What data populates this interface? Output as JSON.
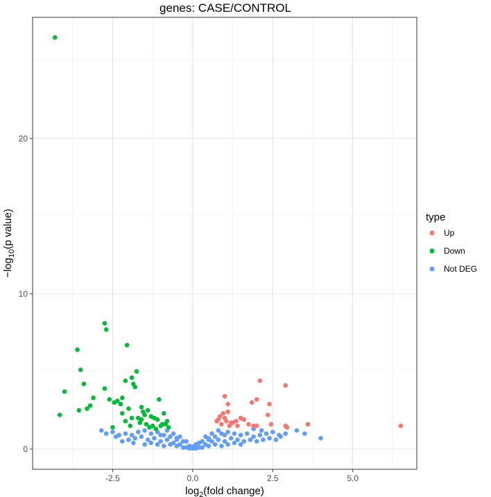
{
  "chart_data": {
    "type": "scatter",
    "title": "genes: CASE/CONTROL",
    "xlabel_main": "log",
    "xlabel_sub": "2",
    "xlabel_rest": "(fold change)",
    "ylabel_main": "−log",
    "ylabel_sub": "10",
    "ylabel_rest": "(p value)",
    "xlim": [
      -5.0,
      7.0
    ],
    "ylim": [
      -1.3,
      27.8
    ],
    "x_ticks": [
      -2.5,
      0.0,
      2.5,
      5.0
    ],
    "x_tick_labels": [
      "-2.5",
      "0.0",
      "2.5",
      "5.0"
    ],
    "y_ticks": [
      0,
      10,
      20
    ],
    "y_tick_labels": [
      "0",
      "10",
      "20"
    ],
    "grid": true,
    "legend": {
      "title": "type",
      "position": "right",
      "entries": [
        {
          "label": "Up",
          "color": "#F8766D"
        },
        {
          "label": "Down",
          "color": "#00BA38"
        },
        {
          "label": "Not DEG",
          "color": "#619CFF"
        }
      ]
    },
    "series": [
      {
        "name": "Up",
        "color": "#F8766D",
        "x": [
          2.1,
          2.9,
          2.0,
          1.0,
          1.1,
          1.85,
          2.4,
          2.35,
          1.1,
          0.95,
          1.5,
          1.35,
          0.85,
          1.6,
          1.75,
          1.9,
          2.45,
          2.0,
          1.25,
          2.95,
          3.6,
          6.5,
          2.9,
          0.8,
          1.05,
          1.2,
          0.9,
          1.4,
          1.15,
          0.75,
          1.0
        ],
        "y": [
          4.4,
          4.1,
          3.2,
          3.4,
          2.9,
          3.0,
          2.9,
          2.2,
          2.4,
          2.3,
          2.0,
          1.8,
          2.1,
          1.9,
          1.6,
          1.5,
          1.6,
          1.5,
          1.7,
          1.4,
          1.6,
          1.5,
          1.5,
          1.9,
          1.8,
          1.7,
          1.6,
          1.5,
          1.5,
          1.8,
          2.0
        ]
      },
      {
        "name": "Down",
        "color": "#00BA38",
        "x": [
          -4.3,
          -2.75,
          -2.7,
          -2.05,
          -3.6,
          -3.5,
          -4.0,
          -3.4,
          -2.75,
          -4.15,
          -3.3,
          -1.75,
          -1.9,
          -2.1,
          -1.8,
          -1.85,
          -2.2,
          -2.45,
          -2.6,
          -2.35,
          -2.25,
          -2.0,
          -1.55,
          -1.6,
          -1.4,
          -1.05,
          -1.2,
          -0.9,
          -0.8,
          -1.7,
          -1.5,
          -1.3,
          -1.1,
          -0.95,
          -2.1,
          -1.95,
          -1.65,
          -1.45,
          -1.35,
          -1.25,
          -0.75,
          -0.85,
          -1.0,
          -1.15,
          -2.5,
          -3.55,
          -3.2,
          -3.1,
          -1.6,
          -1.9,
          -2.2
        ],
        "y": [
          26.5,
          8.1,
          7.7,
          6.7,
          6.4,
          5.1,
          3.7,
          4.2,
          3.9,
          2.2,
          2.6,
          5.0,
          4.6,
          4.4,
          4.0,
          4.2,
          3.3,
          3.0,
          3.2,
          3.1,
          2.9,
          2.6,
          2.4,
          2.7,
          2.5,
          3.2,
          2.0,
          2.3,
          1.8,
          2.0,
          2.2,
          2.1,
          1.9,
          1.6,
          1.8,
          1.5,
          1.7,
          1.6,
          1.4,
          1.5,
          1.4,
          1.6,
          1.5,
          1.3,
          1.4,
          2.5,
          2.8,
          3.3,
          1.9,
          2.0,
          2.3
        ]
      },
      {
        "name": "Not DEG",
        "color": "#619CFF",
        "x": [
          -2.85,
          -2.7,
          -2.5,
          -2.3,
          -2.1,
          -1.9,
          -1.7,
          -1.5,
          -1.3,
          -1.1,
          -0.9,
          -0.7,
          -0.5,
          -0.3,
          -0.1,
          0.1,
          0.3,
          0.5,
          0.7,
          0.9,
          1.1,
          1.3,
          1.5,
          1.7,
          1.9,
          2.1,
          2.3,
          2.5,
          2.7,
          2.9,
          -2.2,
          -2.0,
          -1.8,
          -1.6,
          -1.4,
          -1.2,
          -1.0,
          -0.8,
          -0.6,
          -0.4,
          -0.2,
          0.0,
          0.2,
          0.4,
          0.6,
          0.8,
          1.0,
          1.2,
          1.4,
          1.6,
          1.8,
          2.0,
          2.2,
          2.4,
          2.6,
          -1.5,
          -1.3,
          -1.1,
          -0.9,
          -0.7,
          -0.5,
          -0.3,
          -0.1,
          0.1,
          0.3,
          0.5,
          0.7,
          0.9,
          1.1,
          1.3,
          1.5,
          -0.8,
          -0.6,
          -0.4,
          -0.2,
          0.0,
          0.2,
          0.4,
          0.6,
          0.8,
          -1.0,
          -0.5,
          0.5,
          1.0,
          3.25,
          3.5,
          4.0,
          1.9,
          2.15,
          -2.4,
          -1.85,
          2.75
        ],
        "y": [
          1.2,
          1.0,
          1.1,
          0.9,
          1.0,
          0.9,
          1.1,
          1.2,
          1.0,
          1.1,
          0.9,
          0.8,
          0.7,
          0.5,
          0.2,
          0.3,
          0.5,
          0.7,
          0.8,
          1.0,
          1.1,
          1.0,
          0.9,
          1.0,
          0.8,
          0.9,
          1.0,
          1.1,
          0.9,
          1.0,
          0.5,
          0.6,
          0.7,
          0.8,
          0.6,
          0.7,
          0.5,
          0.6,
          0.4,
          0.3,
          0.1,
          0.05,
          0.1,
          0.3,
          0.5,
          0.6,
          0.5,
          0.7,
          0.6,
          0.5,
          0.6,
          0.5,
          0.6,
          0.7,
          0.6,
          0.3,
          0.4,
          0.3,
          0.2,
          0.3,
          0.2,
          0.1,
          0.05,
          0.05,
          0.1,
          0.2,
          0.3,
          0.2,
          0.3,
          0.4,
          0.3,
          1.2,
          1.0,
          0.8,
          0.5,
          0.15,
          0.4,
          0.8,
          1.0,
          1.2,
          0.9,
          0.6,
          0.6,
          0.9,
          1.2,
          1.0,
          0.7,
          1.3,
          1.2,
          0.8,
          0.4,
          0.8
        ]
      }
    ]
  }
}
